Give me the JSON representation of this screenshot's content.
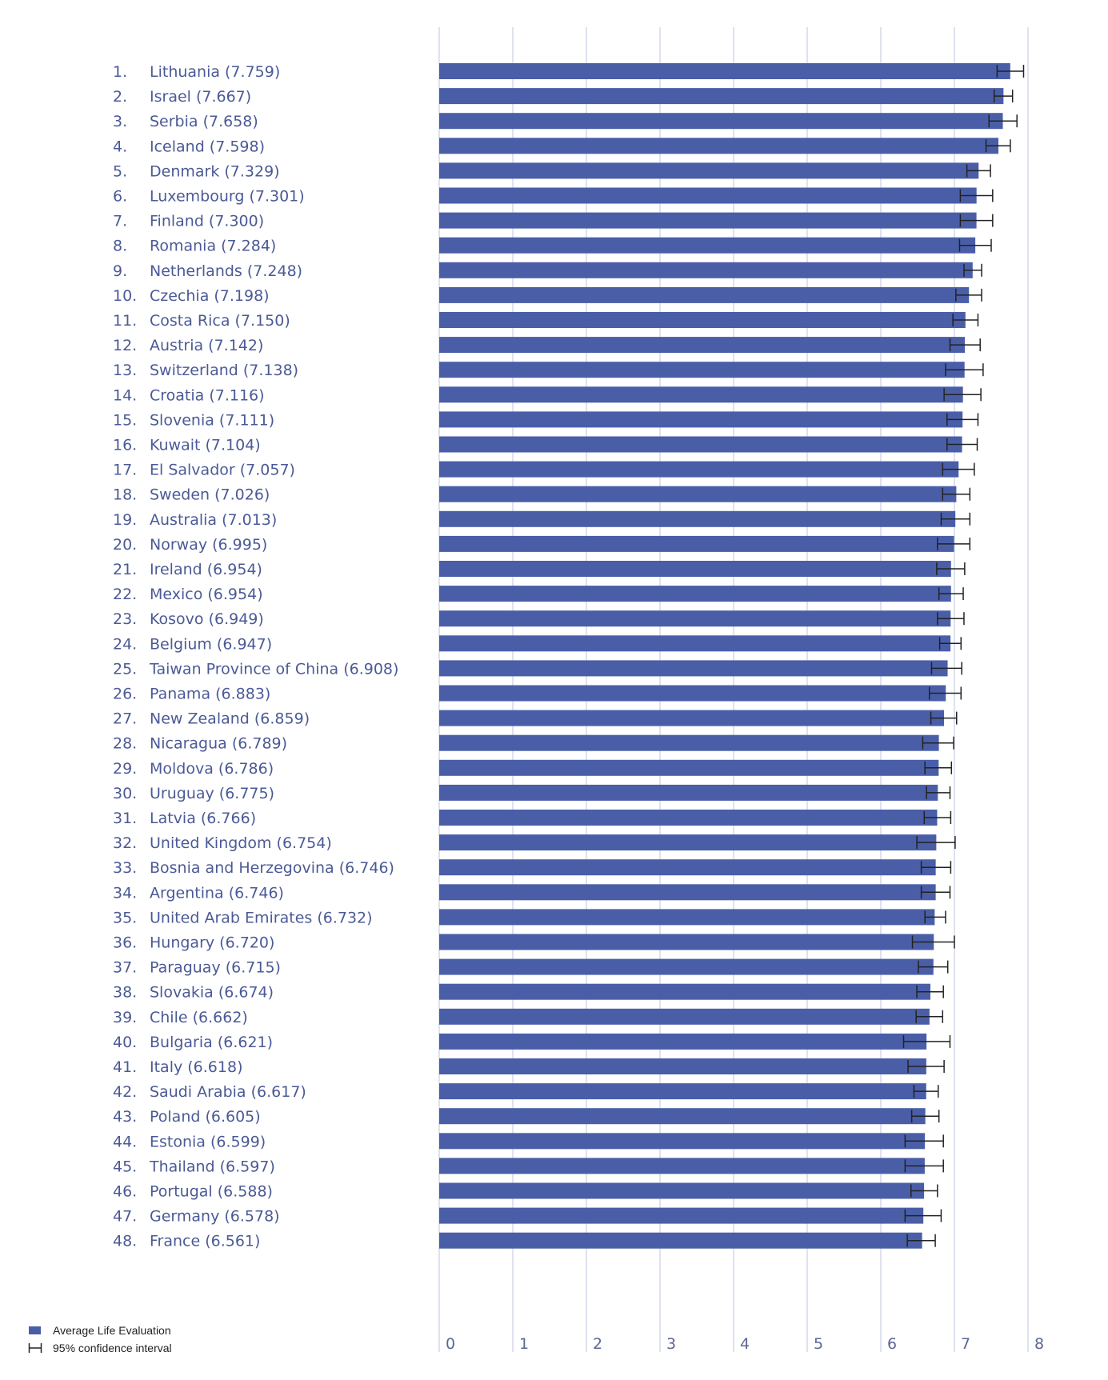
{
  "chart_data": {
    "type": "bar",
    "orientation": "horizontal",
    "title": "",
    "xlabel": "",
    "ylabel": "",
    "xlim": [
      0,
      8
    ],
    "xticks": [
      "0",
      "1",
      "2",
      "3",
      "4",
      "5",
      "6",
      "7",
      "8"
    ],
    "grid": true,
    "colors": {
      "bar": "#4a5ea8",
      "grid": "#c9cee6",
      "label": "#4b5a96",
      "whisker": "#222222"
    },
    "legend": {
      "placement": "bottom-left",
      "entries": [
        "Average Life Evaluation",
        "95% confidence interval"
      ]
    },
    "rows": [
      {
        "rank": "1.",
        "name": "Lithuania",
        "value": 7.759,
        "ci": [
          7.58,
          7.94
        ]
      },
      {
        "rank": "2.",
        "name": "Israel",
        "value": 7.667,
        "ci": [
          7.54,
          7.79
        ]
      },
      {
        "rank": "3.",
        "name": "Serbia",
        "value": 7.658,
        "ci": [
          7.47,
          7.85
        ]
      },
      {
        "rank": "4.",
        "name": "Iceland",
        "value": 7.598,
        "ci": [
          7.43,
          7.76
        ]
      },
      {
        "rank": "5.",
        "name": "Denmark",
        "value": 7.329,
        "ci": [
          7.17,
          7.49
        ]
      },
      {
        "rank": "6.",
        "name": "Luxembourg",
        "value": 7.301,
        "ci": [
          7.08,
          7.52
        ]
      },
      {
        "rank": "7.",
        "name": "Finland",
        "value": 7.3,
        "ci": [
          7.08,
          7.52
        ]
      },
      {
        "rank": "8.",
        "name": "Romania",
        "value": 7.284,
        "ci": [
          7.07,
          7.5
        ]
      },
      {
        "rank": "9.",
        "name": "Netherlands",
        "value": 7.248,
        "ci": [
          7.13,
          7.37
        ]
      },
      {
        "rank": "10.",
        "name": "Czechia",
        "value": 7.198,
        "ci": [
          7.02,
          7.37
        ]
      },
      {
        "rank": "11.",
        "name": "Costa Rica",
        "value": 7.15,
        "ci": [
          6.98,
          7.32
        ]
      },
      {
        "rank": "12.",
        "name": "Austria",
        "value": 7.142,
        "ci": [
          6.94,
          7.35
        ]
      },
      {
        "rank": "13.",
        "name": "Switzerland",
        "value": 7.138,
        "ci": [
          6.88,
          7.39
        ]
      },
      {
        "rank": "14.",
        "name": "Croatia",
        "value": 7.116,
        "ci": [
          6.86,
          7.36
        ]
      },
      {
        "rank": "15.",
        "name": "Slovenia",
        "value": 7.111,
        "ci": [
          6.9,
          7.32
        ]
      },
      {
        "rank": "16.",
        "name": "Kuwait",
        "value": 7.104,
        "ci": [
          6.9,
          7.31
        ]
      },
      {
        "rank": "17.",
        "name": "El Salvador",
        "value": 7.057,
        "ci": [
          6.84,
          7.27
        ]
      },
      {
        "rank": "18.",
        "name": "Sweden",
        "value": 7.026,
        "ci": [
          6.84,
          7.21
        ]
      },
      {
        "rank": "19.",
        "name": "Australia",
        "value": 7.013,
        "ci": [
          6.82,
          7.21
        ]
      },
      {
        "rank": "20.",
        "name": "Norway",
        "value": 6.995,
        "ci": [
          6.77,
          7.21
        ]
      },
      {
        "rank": "21.",
        "name": "Ireland",
        "value": 6.954,
        "ci": [
          6.76,
          7.14
        ]
      },
      {
        "rank": "22.",
        "name": "Mexico",
        "value": 6.954,
        "ci": [
          6.79,
          7.12
        ]
      },
      {
        "rank": "23.",
        "name": "Kosovo",
        "value": 6.949,
        "ci": [
          6.77,
          7.13
        ]
      },
      {
        "rank": "24.",
        "name": "Belgium",
        "value": 6.947,
        "ci": [
          6.8,
          7.09
        ]
      },
      {
        "rank": "25.",
        "name": "Taiwan Province of China",
        "value": 6.908,
        "ci": [
          6.69,
          7.1
        ]
      },
      {
        "rank": "26.",
        "name": "Panama",
        "value": 6.883,
        "ci": [
          6.66,
          7.09
        ]
      },
      {
        "rank": "27.",
        "name": "New Zealand",
        "value": 6.859,
        "ci": [
          6.68,
          7.03
        ]
      },
      {
        "rank": "28.",
        "name": "Nicaragua",
        "value": 6.789,
        "ci": [
          6.57,
          6.99
        ]
      },
      {
        "rank": "29.",
        "name": "Moldova",
        "value": 6.786,
        "ci": [
          6.6,
          6.96
        ]
      },
      {
        "rank": "30.",
        "name": "Uruguay",
        "value": 6.775,
        "ci": [
          6.62,
          6.94
        ]
      },
      {
        "rank": "31.",
        "name": "Latvia",
        "value": 6.766,
        "ci": [
          6.59,
          6.95
        ]
      },
      {
        "rank": "32.",
        "name": "United Kingdom",
        "value": 6.754,
        "ci": [
          6.49,
          7.01
        ]
      },
      {
        "rank": "33.",
        "name": "Bosnia and Herzegovina",
        "value": 6.746,
        "ci": [
          6.55,
          6.95
        ]
      },
      {
        "rank": "34.",
        "name": "Argentina",
        "value": 6.746,
        "ci": [
          6.55,
          6.94
        ]
      },
      {
        "rank": "35.",
        "name": "United Arab Emirates",
        "value": 6.732,
        "ci": [
          6.6,
          6.88
        ]
      },
      {
        "rank": "36.",
        "name": "Hungary",
        "value": 6.72,
        "ci": [
          6.43,
          7.0
        ]
      },
      {
        "rank": "37.",
        "name": "Paraguay",
        "value": 6.715,
        "ci": [
          6.51,
          6.91
        ]
      },
      {
        "rank": "38.",
        "name": "Slovakia",
        "value": 6.674,
        "ci": [
          6.49,
          6.85
        ]
      },
      {
        "rank": "39.",
        "name": "Chile",
        "value": 6.662,
        "ci": [
          6.48,
          6.84
        ]
      },
      {
        "rank": "40.",
        "name": "Bulgaria",
        "value": 6.621,
        "ci": [
          6.31,
          6.94
        ]
      },
      {
        "rank": "41.",
        "name": "Italy",
        "value": 6.618,
        "ci": [
          6.37,
          6.86
        ]
      },
      {
        "rank": "42.",
        "name": "Saudi Arabia",
        "value": 6.617,
        "ci": [
          6.45,
          6.78
        ]
      },
      {
        "rank": "43.",
        "name": "Poland",
        "value": 6.605,
        "ci": [
          6.42,
          6.79
        ]
      },
      {
        "rank": "44.",
        "name": "Estonia",
        "value": 6.599,
        "ci": [
          6.33,
          6.85
        ]
      },
      {
        "rank": "45.",
        "name": "Thailand",
        "value": 6.597,
        "ci": [
          6.33,
          6.85
        ]
      },
      {
        "rank": "46.",
        "name": "Portugal",
        "value": 6.588,
        "ci": [
          6.41,
          6.77
        ]
      },
      {
        "rank": "47.",
        "name": "Germany",
        "value": 6.578,
        "ci": [
          6.33,
          6.82
        ]
      },
      {
        "rank": "48.",
        "name": "France",
        "value": 6.561,
        "ci": [
          6.36,
          6.74
        ]
      }
    ]
  }
}
